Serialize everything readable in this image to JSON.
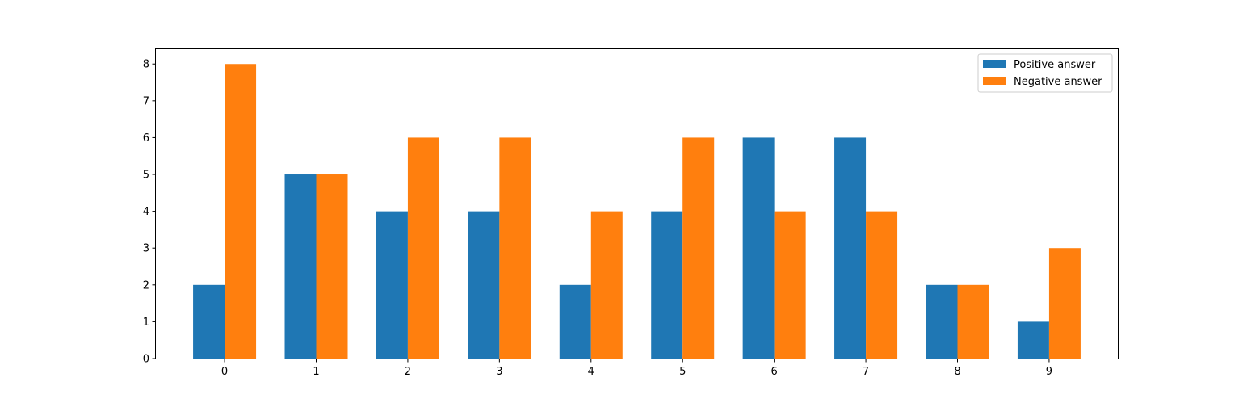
{
  "chart_data": {
    "type": "bar",
    "categories": [
      "0",
      "1",
      "2",
      "3",
      "4",
      "5",
      "6",
      "7",
      "8",
      "9"
    ],
    "series": [
      {
        "name": "Positive answer",
        "color": "#1f77b4",
        "values": [
          2,
          5,
          4,
          4,
          2,
          4,
          6,
          6,
          2,
          1
        ]
      },
      {
        "name": "Negative answer",
        "color": "#ff7f0e",
        "values": [
          8,
          5,
          6,
          6,
          4,
          6,
          4,
          4,
          2,
          3
        ]
      }
    ],
    "title": "",
    "xlabel": "",
    "ylabel": "",
    "ylim": [
      0,
      8.4
    ],
    "yticks": [
      "0",
      "1",
      "2",
      "3",
      "4",
      "5",
      "6",
      "7",
      "8"
    ],
    "grid": false,
    "legend": "top-right"
  }
}
